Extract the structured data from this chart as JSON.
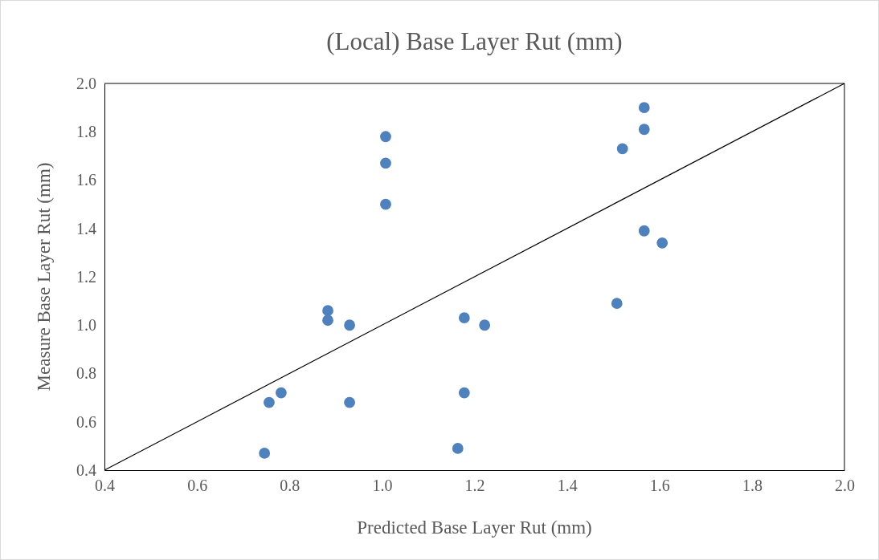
{
  "chart_data": {
    "type": "scatter",
    "title": "(Local) Base Layer Rut (mm)",
    "xlabel": "Predicted Base Layer Rut (mm)",
    "ylabel": "Measure Base Layer Rut (mm)",
    "xlim": [
      0.4,
      2.0
    ],
    "ylim": [
      0.4,
      2.0
    ],
    "xticks": [
      {
        "value": 0.4,
        "label": "0.4"
      },
      {
        "value": 0.6,
        "label": "0.6"
      },
      {
        "value": 0.8,
        "label": "0.8"
      },
      {
        "value": 1.0,
        "label": "1.0"
      },
      {
        "value": 1.2,
        "label": "1.2"
      },
      {
        "value": 1.4,
        "label": "1.4"
      },
      {
        "value": 1.6,
        "label": "1.6"
      },
      {
        "value": 1.8,
        "label": "1.8"
      },
      {
        "value": 2.0,
        "label": "2.0"
      }
    ],
    "yticks": [
      {
        "value": 0.4,
        "label": "0.4"
      },
      {
        "value": 0.6,
        "label": "0.6"
      },
      {
        "value": 0.8,
        "label": "0.8"
      },
      {
        "value": 1.0,
        "label": "1.0"
      },
      {
        "value": 1.2,
        "label": "1.2"
      },
      {
        "value": 1.4,
        "label": "1.4"
      },
      {
        "value": 1.6,
        "label": "1.6"
      },
      {
        "value": 1.8,
        "label": "1.8"
      },
      {
        "value": 2.0,
        "label": "2.0"
      }
    ],
    "grid": false,
    "marker": "circle",
    "series": [
      {
        "color": "#4f81bd",
        "x": [
          1.567,
          1.567,
          1.52,
          1.008,
          1.008,
          1.008,
          1.567,
          1.606,
          1.508,
          0.883,
          0.883,
          0.93,
          1.178,
          1.222,
          0.782,
          0.756,
          0.93,
          1.178,
          1.164,
          0.746
        ],
        "values": [
          1.9,
          1.81,
          1.73,
          1.78,
          1.67,
          1.5,
          1.39,
          1.34,
          1.09,
          1.06,
          1.02,
          1.0,
          1.03,
          1.0,
          0.72,
          0.68,
          0.68,
          0.72,
          0.49,
          0.47
        ]
      },
      {
        "type": "line",
        "color": "#000000",
        "x": [
          0.4,
          2.0
        ],
        "values": [
          0.4,
          2.0
        ],
        "marker": "none",
        "line_style": "solid"
      }
    ]
  }
}
